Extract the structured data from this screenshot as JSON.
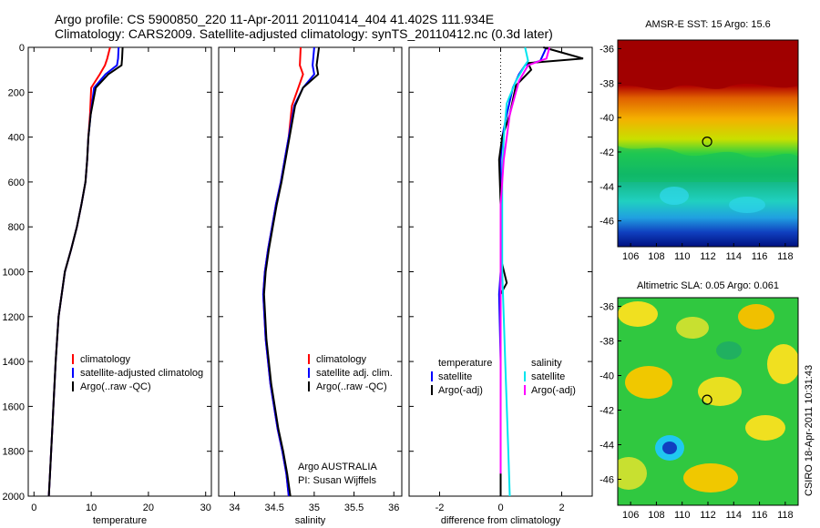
{
  "header": {
    "line1": "Argo profile: CS 5900850_220 11-Apr-2011 20110414_404 41.402S 111.934E",
    "line2": "Climatology: CARS2009. Satellite-adjusted climatology: synTS_20110412.nc (0.3d later)"
  },
  "colors": {
    "climatology": "#ff0000",
    "satellite": "#0000ff",
    "argo": "#000000",
    "salinity_satellite": "#00e5ee",
    "salinity_argo": "#ff00ff"
  },
  "chart_data": [
    {
      "type": "line",
      "panel": "temperature",
      "xlabel": "temperature",
      "xlim": [
        -1,
        31
      ],
      "xticks": [
        0,
        10,
        20,
        30
      ],
      "ylim": [
        2000,
        0
      ],
      "yticks": [
        0,
        200,
        400,
        600,
        800,
        1000,
        1200,
        1400,
        1600,
        1800,
        2000
      ],
      "yticklabels": [
        "0",
        "200",
        "400",
        "600",
        "800",
        "1000",
        "1200",
        "1400",
        "1600",
        "1800",
        "2000"
      ],
      "legend": [
        "climatology",
        "satellite-adjusted climatolog",
        "Argo(..raw -QC)"
      ],
      "series": [
        {
          "name": "climatology",
          "color": "#ff0000",
          "x": [
            13.3,
            12.8,
            12.4,
            11.5,
            10.0,
            9.8,
            9.5,
            9.3,
            9.0,
            8.3,
            7.5,
            6.5,
            5.4,
            4.3,
            3.8,
            3.4,
            3.2,
            2.8,
            2.6
          ],
          "y": [
            0,
            50,
            80,
            120,
            180,
            300,
            400,
            500,
            600,
            700,
            800,
            900,
            1000,
            1200,
            1400,
            1600,
            1700,
            1900,
            2000
          ]
        },
        {
          "name": "satellite-adjusted climatolog",
          "color": "#0000ff",
          "x": [
            14.8,
            14.7,
            14.5,
            12.5,
            10.5,
            9.9,
            9.5,
            9.3,
            9.0,
            8.3,
            7.5,
            6.5,
            5.4,
            4.3,
            3.8,
            3.4,
            3.2,
            2.8,
            2.6
          ],
          "y": [
            0,
            50,
            80,
            120,
            180,
            300,
            400,
            500,
            600,
            700,
            800,
            900,
            1000,
            1200,
            1400,
            1600,
            1700,
            1900,
            2000
          ]
        },
        {
          "name": "Argo(..raw -QC)",
          "color": "#000000",
          "x": [
            15.5,
            15.4,
            15.3,
            13.0,
            10.8,
            9.9,
            9.5,
            9.3,
            9.0,
            8.3,
            7.5,
            6.5,
            5.4,
            4.3,
            3.8,
            3.4,
            3.2,
            2.8,
            2.6
          ],
          "y": [
            0,
            50,
            80,
            120,
            180,
            300,
            400,
            500,
            600,
            700,
            800,
            900,
            1000,
            1200,
            1400,
            1600,
            1700,
            1900,
            2000
          ]
        }
      ]
    },
    {
      "type": "line",
      "panel": "salinity",
      "xlabel": "salinity",
      "xlim": [
        33.8,
        36.1
      ],
      "xticks": [
        34,
        34.5,
        35,
        35.5,
        36
      ],
      "xticklabels": [
        "34",
        "34.5",
        "35",
        "35.5",
        "36"
      ],
      "ylim": [
        2000,
        0
      ],
      "yticks": [
        0,
        200,
        400,
        600,
        800,
        1000,
        1200,
        1400,
        1600,
        1800,
        2000
      ],
      "legend": [
        "climatology",
        "satellite adj. clim.",
        "Argo(..raw -QC)"
      ],
      "annotation": [
        "Argo AUSTRALIA",
        "PI: Susan Wijffels"
      ],
      "series": [
        {
          "name": "climatology",
          "color": "#ff0000",
          "x": [
            34.83,
            34.82,
            34.86,
            34.8,
            34.72,
            34.68,
            34.63,
            34.58,
            34.52,
            34.47,
            34.42,
            34.38,
            34.36,
            34.39,
            34.45,
            34.54,
            34.6,
            34.65,
            34.68
          ],
          "y": [
            0,
            80,
            120,
            180,
            260,
            400,
            500,
            600,
            700,
            800,
            900,
            1000,
            1100,
            1300,
            1500,
            1700,
            1800,
            1900,
            2000
          ]
        },
        {
          "name": "satellite adj. clim.",
          "color": "#0000ff",
          "x": [
            35.0,
            34.98,
            35.0,
            34.86,
            34.75,
            34.68,
            34.63,
            34.58,
            34.52,
            34.47,
            34.42,
            34.38,
            34.36,
            34.39,
            34.45,
            34.54,
            34.6,
            34.65,
            34.68
          ],
          "y": [
            0,
            80,
            120,
            180,
            260,
            400,
            500,
            600,
            700,
            800,
            900,
            1000,
            1100,
            1300,
            1500,
            1700,
            1800,
            1900,
            2000
          ]
        },
        {
          "name": "Argo(..raw -QC)",
          "color": "#000000",
          "x": [
            35.06,
            35.03,
            35.05,
            34.86,
            34.76,
            34.69,
            34.64,
            34.59,
            34.53,
            34.48,
            34.43,
            34.39,
            34.37,
            34.4,
            34.46,
            34.55,
            34.61,
            34.66,
            34.7
          ],
          "y": [
            0,
            80,
            120,
            180,
            260,
            400,
            500,
            600,
            700,
            800,
            900,
            1000,
            1100,
            1300,
            1500,
            1700,
            1800,
            1900,
            2000
          ]
        }
      ]
    },
    {
      "type": "line",
      "panel": "difference",
      "xlabel": "difference from climatology",
      "xlim": [
        -3,
        3
      ],
      "xticks": [
        -2,
        0,
        2
      ],
      "ylim": [
        2000,
        0
      ],
      "yticks": [
        0,
        200,
        400,
        600,
        800,
        1000,
        1200,
        1400,
        1600,
        1800,
        2000
      ],
      "legend_temperature_title": "temperature",
      "legend_temperature": [
        "satellite",
        "Argo(-adj)"
      ],
      "legend_salinity_title": "salinity",
      "legend_salinity": [
        "satellite",
        "Argo(-adj)"
      ],
      "series": [
        {
          "name": "temperature satellite",
          "color": "#0000ff",
          "x": [
            1.5,
            1.3,
            0.8,
            0.6,
            0.4,
            0.2,
            0.05,
            0.0,
            0.0,
            0.0,
            0.0,
            -0.05,
            0.0,
            0.0,
            0.0
          ],
          "y": [
            0,
            60,
            80,
            120,
            180,
            300,
            400,
            500,
            700,
            900,
            1000,
            1100,
            1400,
            1700,
            2000
          ]
        },
        {
          "name": "temperature Argo(-adj)",
          "color": "#000000",
          "x": [
            1.4,
            2.7,
            0.9,
            1.0,
            0.5,
            0.3,
            0.05,
            -0.05,
            0.0,
            0.02,
            0.2,
            0.0,
            0.0,
            0.0,
            0.0
          ],
          "y": [
            0,
            50,
            70,
            100,
            170,
            300,
            400,
            500,
            700,
            950,
            1050,
            1100,
            1400,
            1700,
            2000
          ]
        },
        {
          "name": "salinity satellite",
          "color": "#00e5ee",
          "x": [
            0.8,
            0.9,
            0.8,
            0.5,
            0.2,
            0.1,
            0.05,
            0.05,
            0.05,
            0.1,
            0.15,
            0.2,
            0.25,
            0.3
          ],
          "y": [
            0,
            60,
            80,
            150,
            250,
            400,
            600,
            800,
            1000,
            1200,
            1400,
            1600,
            1800,
            2000
          ]
        },
        {
          "name": "salinity Argo(-adj)",
          "color": "#ff00ff",
          "x": [
            1.6,
            1.5,
            0.9,
            0.6,
            0.3,
            0.1,
            0.0,
            0.0,
            0.0,
            0.0,
            0.0,
            0.0,
            0.0
          ],
          "y": [
            0,
            50,
            80,
            150,
            300,
            500,
            700,
            900,
            1100,
            1300,
            1500,
            1700,
            1900
          ]
        }
      ]
    },
    {
      "type": "heatmap",
      "panel": "sst_map",
      "title": "AMSR-E SST: 15 Argo: 15.6",
      "xlim": [
        105,
        119
      ],
      "ylim": [
        -47.5,
        -35.5
      ],
      "xticks": [
        106,
        108,
        110,
        112,
        114,
        116,
        118
      ],
      "yticks": [
        -36,
        -38,
        -40,
        -42,
        -44,
        -46
      ],
      "marker": {
        "x": 111.934,
        "y": -41.402
      }
    },
    {
      "type": "heatmap",
      "panel": "sla_map",
      "title": "Altimetric SLA: 0.05 Argo: 0.061",
      "xlim": [
        105,
        119
      ],
      "ylim": [
        -47.5,
        -35.5
      ],
      "xticks": [
        106,
        108,
        110,
        112,
        114,
        116,
        118
      ],
      "yticks": [
        -36,
        -38,
        -40,
        -42,
        -44,
        -46
      ],
      "marker": {
        "x": 111.934,
        "y": -41.402
      }
    }
  ],
  "stamp": "CSIRO 18-Apr-2011 10:31:43"
}
